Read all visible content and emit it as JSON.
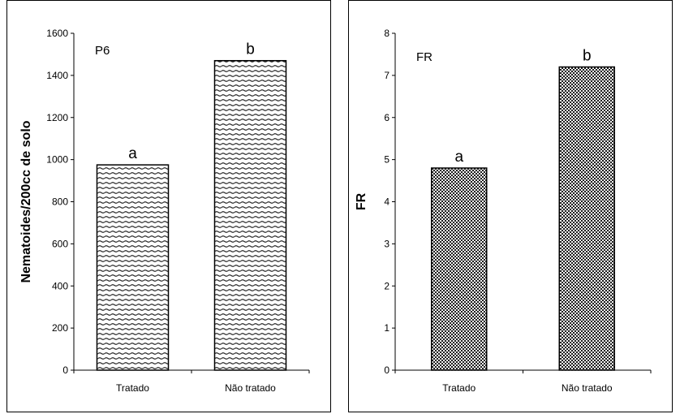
{
  "chart_data": [
    {
      "type": "bar",
      "panel_label": "P6",
      "ylabel": "Nematoides/200cc de solo",
      "xlabel": "",
      "categories": [
        "Tratado",
        "Não tratado"
      ],
      "values": [
        975,
        1470
      ],
      "bar_labels": [
        "a",
        "b"
      ],
      "ylim": [
        0,
        1600
      ],
      "yticks": [
        0,
        200,
        400,
        600,
        800,
        1000,
        1200,
        1400,
        1600
      ],
      "pattern": "horizontal-wavy-lines",
      "grid": false,
      "legend": "none"
    },
    {
      "type": "bar",
      "panel_label": "FR",
      "ylabel": "FR",
      "xlabel": "",
      "categories": [
        "Tratado",
        "Não tratado"
      ],
      "values": [
        4.8,
        7.2
      ],
      "bar_labels": [
        "a",
        "b"
      ],
      "ylim": [
        0,
        8
      ],
      "yticks": [
        0,
        1,
        2,
        3,
        4,
        5,
        6,
        7,
        8
      ],
      "pattern": "checkered",
      "grid": false,
      "legend": "none"
    }
  ]
}
